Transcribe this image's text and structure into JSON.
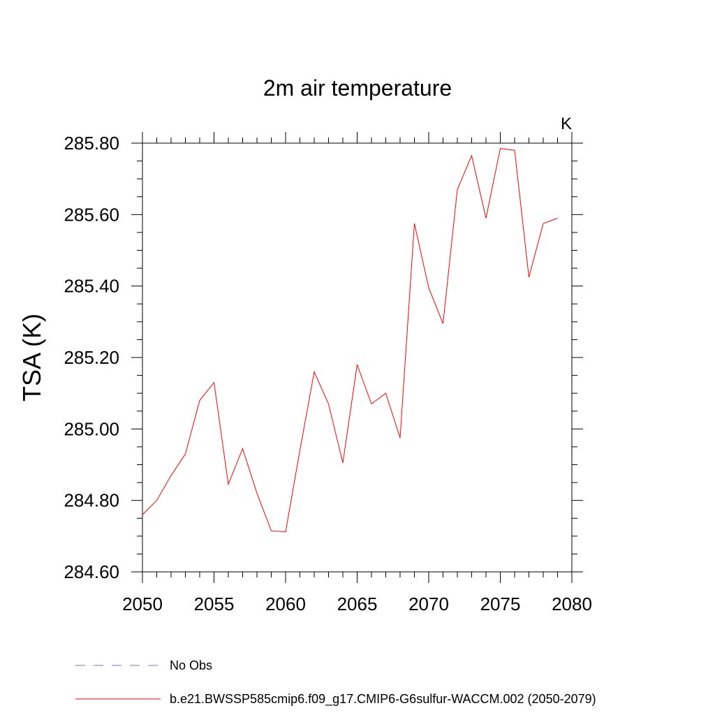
{
  "chart_data": {
    "type": "line",
    "title": "2m air temperature",
    "units": "K",
    "xlabel": "",
    "ylabel": "TSA  (K)",
    "xlim": [
      2050,
      2080
    ],
    "ylim": [
      284.6,
      285.8
    ],
    "x_ticks": [
      "2050",
      "2055",
      "2060",
      "2065",
      "2070",
      "2075",
      "2080"
    ],
    "y_ticks": [
      "284.60",
      "284.80",
      "285.00",
      "285.20",
      "285.40",
      "285.60",
      "285.80"
    ],
    "grid": false,
    "legend_position": "bottom",
    "series": [
      {
        "name": "b.e21.BWSSP585cmip6.f09_g17.CMIP6-G6sulfur-WACCM.002 (2050-2079)",
        "color": "#ff0000",
        "style": "solid",
        "x": [
          2050,
          2051,
          2052,
          2053,
          2054,
          2055,
          2056,
          2057,
          2058,
          2059,
          2060,
          2061,
          2062,
          2063,
          2064,
          2065,
          2066,
          2067,
          2068,
          2069,
          2070,
          2071,
          2072,
          2073,
          2074,
          2075,
          2076,
          2077,
          2078,
          2079
        ],
        "y": [
          284.76,
          284.8,
          284.87,
          284.93,
          285.08,
          285.13,
          284.845,
          284.945,
          284.82,
          284.715,
          284.712,
          284.94,
          285.16,
          285.07,
          284.905,
          285.18,
          285.07,
          285.1,
          284.975,
          285.575,
          285.395,
          285.295,
          285.67,
          285.765,
          285.59,
          285.785,
          285.78,
          285.425,
          285.575,
          285.59
        ]
      }
    ],
    "legend": [
      {
        "label": "No Obs",
        "color": "#7a6fbf",
        "style": "dashed"
      },
      {
        "label": "b.e21.BWSSP585cmip6.f09_g17.CMIP6-G6sulfur-WACCM.002 (2050-2079)",
        "color": "#ff0000",
        "style": "solid"
      }
    ]
  }
}
